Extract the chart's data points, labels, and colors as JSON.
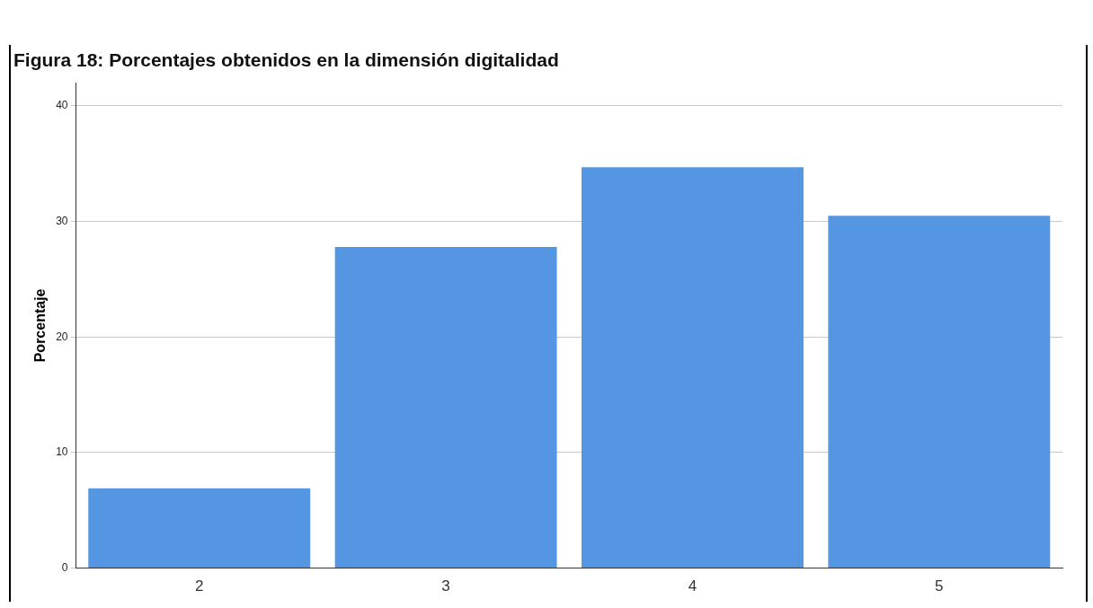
{
  "chart_data": {
    "type": "bar",
    "title": "Figura 18: Porcentajes obtenidos en la dimensión digitalidad",
    "ylabel": "Porcentaje",
    "categories": [
      "2",
      "3",
      "4",
      "5"
    ],
    "values": [
      6.9,
      27.8,
      34.7,
      30.5
    ],
    "color": "#5596e3",
    "ylim": [
      0,
      42
    ],
    "yticks": [
      0,
      10,
      20,
      30,
      40
    ],
    "grid": "y"
  }
}
